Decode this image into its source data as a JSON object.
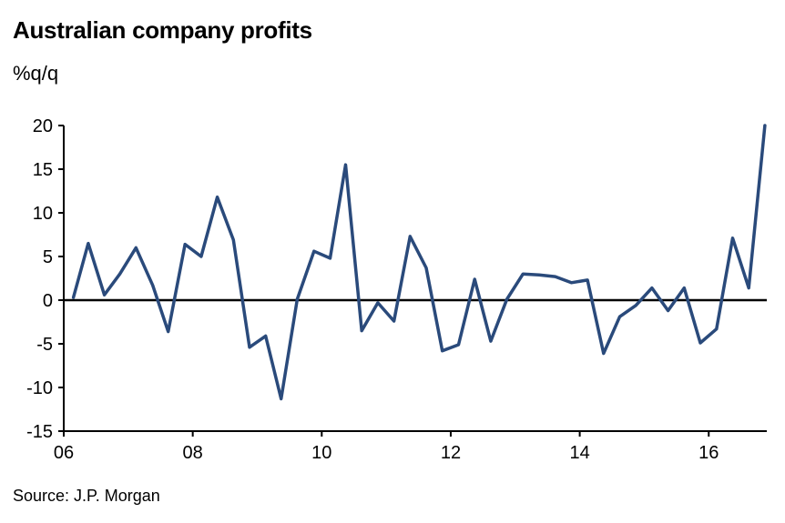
{
  "title": "Australian company profits",
  "unit_label": "%q/q",
  "source": "Source: J.P. Morgan",
  "chart_data": {
    "type": "line",
    "title": "Australian company profits",
    "ylabel": "%q/q",
    "xlabel": "",
    "ylim": [
      -15,
      20
    ],
    "yticks": [
      20,
      15,
      10,
      5,
      0,
      -5,
      -10,
      -15
    ],
    "xticks": [
      {
        "label": "06",
        "x": 2006
      },
      {
        "label": "08",
        "x": 2008
      },
      {
        "label": "10",
        "x": 2010
      },
      {
        "label": "12",
        "x": 2012
      },
      {
        "label": "14",
        "x": 2014
      },
      {
        "label": "16",
        "x": 2016
      }
    ],
    "xlim": [
      2006.0,
      2016.9
    ],
    "zero_line": true,
    "grid": false,
    "series": [
      {
        "color": "#2a4a7b",
        "points": [
          [
            2006.15,
            0.3
          ],
          [
            2006.38,
            6.5
          ],
          [
            2006.63,
            0.6
          ],
          [
            2006.87,
            3.0
          ],
          [
            2007.12,
            6.0
          ],
          [
            2007.38,
            1.7
          ],
          [
            2007.62,
            -3.6
          ],
          [
            2007.88,
            6.4
          ],
          [
            2008.13,
            5.0
          ],
          [
            2008.38,
            11.8
          ],
          [
            2008.63,
            6.9
          ],
          [
            2008.88,
            -5.4
          ],
          [
            2009.13,
            -4.1
          ],
          [
            2009.37,
            -11.3
          ],
          [
            2009.62,
            0.1
          ],
          [
            2009.88,
            5.6
          ],
          [
            2010.13,
            4.8
          ],
          [
            2010.37,
            15.5
          ],
          [
            2010.62,
            -3.5
          ],
          [
            2010.87,
            -0.3
          ],
          [
            2011.12,
            -2.4
          ],
          [
            2011.37,
            7.3
          ],
          [
            2011.62,
            3.7
          ],
          [
            2011.87,
            -5.8
          ],
          [
            2012.12,
            -5.1
          ],
          [
            2012.37,
            2.4
          ],
          [
            2012.62,
            -4.7
          ],
          [
            2012.87,
            0.1
          ],
          [
            2013.12,
            3.0
          ],
          [
            2013.37,
            2.9
          ],
          [
            2013.62,
            2.7
          ],
          [
            2013.87,
            2.0
          ],
          [
            2014.12,
            2.3
          ],
          [
            2014.37,
            -6.1
          ],
          [
            2014.62,
            -1.9
          ],
          [
            2014.87,
            -0.6
          ],
          [
            2015.12,
            1.4
          ],
          [
            2015.37,
            -1.2
          ],
          [
            2015.62,
            1.4
          ],
          [
            2015.87,
            -4.9
          ],
          [
            2016.12,
            -3.3
          ],
          [
            2016.37,
            7.1
          ],
          [
            2016.62,
            1.4
          ],
          [
            2016.87,
            20.0
          ]
        ]
      }
    ]
  }
}
